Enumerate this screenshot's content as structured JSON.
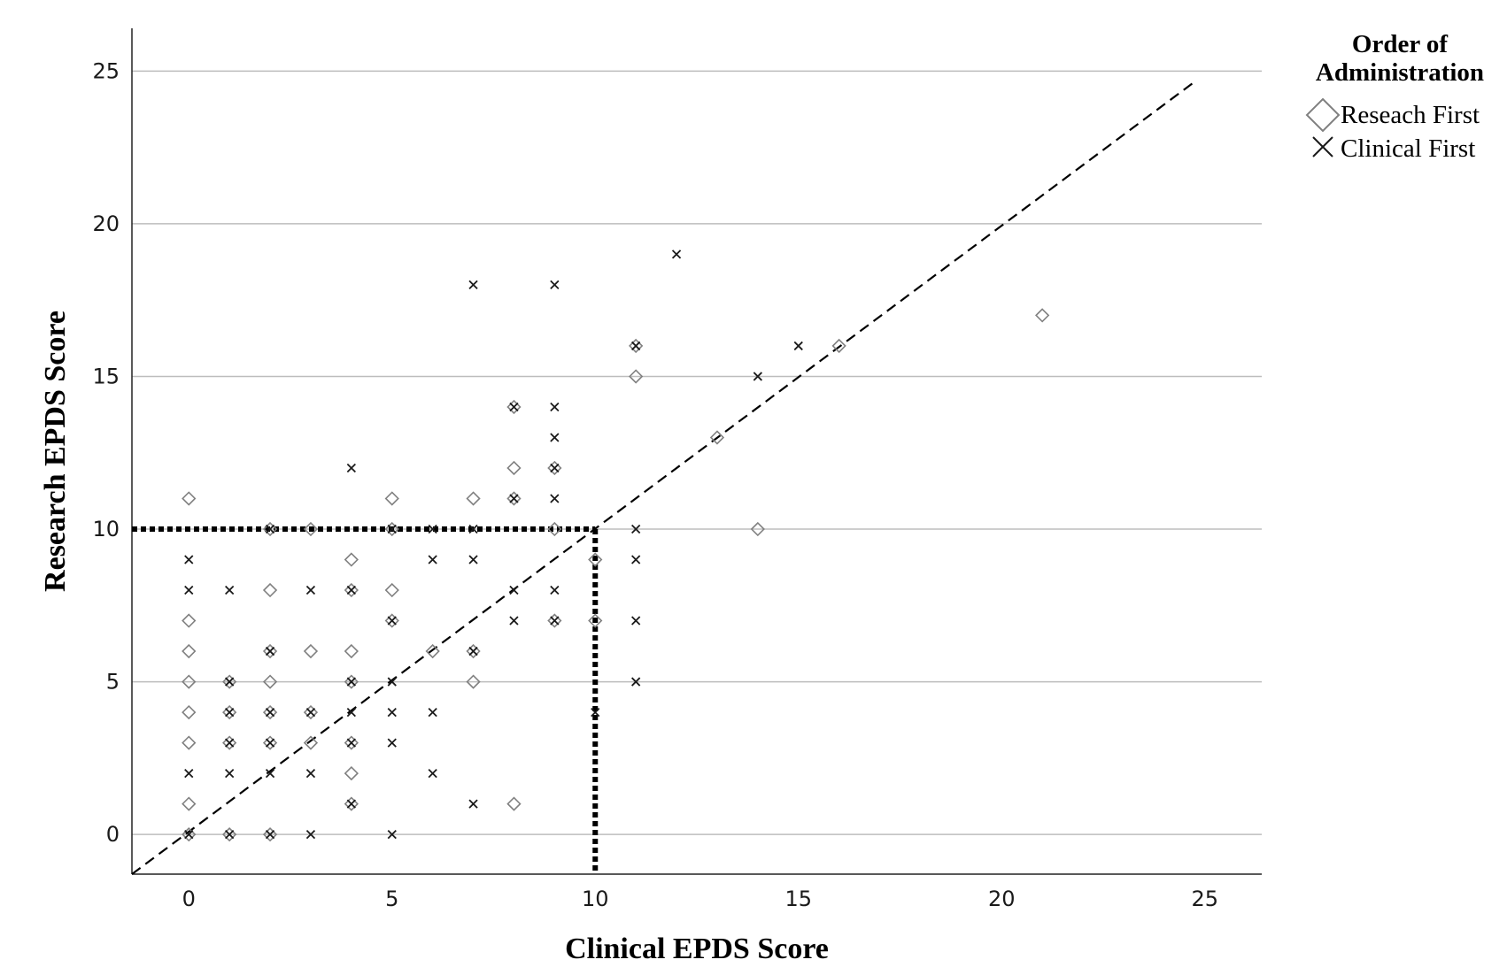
{
  "chart_data": {
    "type": "scatter",
    "xlabel": "Clinical EPDS Score",
    "ylabel": "Research EPDS Score",
    "xlim": [
      -1.4,
      26.4
    ],
    "ylim": [
      -1.3,
      26.4
    ],
    "xticks": [
      0,
      5,
      10,
      15,
      20,
      25
    ],
    "yticks": [
      0,
      5,
      10,
      15,
      20,
      25
    ],
    "grid": "horizontal",
    "legend": {
      "title_line1": "Order of",
      "title_line2": "Administration",
      "placement": "top-right outside"
    },
    "reference_lines": {
      "identity": {
        "style": "dashed",
        "from": [
          -1.4,
          -1.3
        ],
        "to": [
          24.8,
          24.7
        ]
      },
      "cutoff_horizontal": {
        "style": "dotted",
        "y": 10,
        "x_from": -1.4,
        "x_to": 10
      },
      "cutoff_vertical": {
        "style": "dotted",
        "x": 10,
        "y_from": 10,
        "y_to": -1.3
      }
    },
    "series": [
      {
        "name": "Reseach First",
        "marker": "diamond",
        "color": "#808080",
        "points": [
          [
            0,
            11
          ],
          [
            0,
            7
          ],
          [
            0,
            6
          ],
          [
            0,
            5
          ],
          [
            0,
            4
          ],
          [
            0,
            3
          ],
          [
            0,
            1
          ],
          [
            0,
            0
          ],
          [
            1,
            5
          ],
          [
            1,
            4
          ],
          [
            1,
            3
          ],
          [
            1,
            0
          ],
          [
            2,
            10
          ],
          [
            2,
            8
          ],
          [
            2,
            6
          ],
          [
            2,
            5
          ],
          [
            2,
            4
          ],
          [
            2,
            3
          ],
          [
            2,
            0
          ],
          [
            3,
            10
          ],
          [
            3,
            6
          ],
          [
            3,
            4
          ],
          [
            3,
            3
          ],
          [
            4,
            9
          ],
          [
            4,
            8
          ],
          [
            4,
            6
          ],
          [
            4,
            5
          ],
          [
            4,
            3
          ],
          [
            4,
            2
          ],
          [
            4,
            1
          ],
          [
            5,
            11
          ],
          [
            5,
            10
          ],
          [
            5,
            8
          ],
          [
            5,
            7
          ],
          [
            6,
            6
          ],
          [
            7,
            11
          ],
          [
            7,
            6
          ],
          [
            7,
            5
          ],
          [
            8,
            14
          ],
          [
            8,
            12
          ],
          [
            8,
            11
          ],
          [
            8,
            1
          ],
          [
            9,
            12
          ],
          [
            9,
            10
          ],
          [
            9,
            7
          ],
          [
            10,
            9
          ],
          [
            10,
            7
          ],
          [
            11,
            16
          ],
          [
            11,
            15
          ],
          [
            13,
            13
          ],
          [
            14,
            10
          ],
          [
            16,
            16
          ],
          [
            21,
            17
          ]
        ]
      },
      {
        "name": "Clinical First",
        "marker": "x",
        "color": "#1a1a1a",
        "points": [
          [
            0,
            9
          ],
          [
            0,
            8
          ],
          [
            0,
            2
          ],
          [
            0,
            0
          ],
          [
            1,
            8
          ],
          [
            1,
            5
          ],
          [
            1,
            4
          ],
          [
            1,
            3
          ],
          [
            1,
            2
          ],
          [
            1,
            0
          ],
          [
            2,
            10
          ],
          [
            2,
            6
          ],
          [
            2,
            4
          ],
          [
            2,
            3
          ],
          [
            2,
            2
          ],
          [
            2,
            0
          ],
          [
            3,
            8
          ],
          [
            3,
            4
          ],
          [
            3,
            2
          ],
          [
            3,
            0
          ],
          [
            4,
            12
          ],
          [
            4,
            8
          ],
          [
            4,
            5
          ],
          [
            4,
            4
          ],
          [
            4,
            3
          ],
          [
            4,
            1
          ],
          [
            5,
            10
          ],
          [
            5,
            7
          ],
          [
            5,
            5
          ],
          [
            5,
            4
          ],
          [
            5,
            3
          ],
          [
            5,
            0
          ],
          [
            6,
            10
          ],
          [
            6,
            9
          ],
          [
            6,
            4
          ],
          [
            6,
            2
          ],
          [
            7,
            18
          ],
          [
            7,
            10
          ],
          [
            7,
            9
          ],
          [
            7,
            6
          ],
          [
            7,
            1
          ],
          [
            8,
            14
          ],
          [
            8,
            11
          ],
          [
            8,
            8
          ],
          [
            8,
            7
          ],
          [
            9,
            18
          ],
          [
            9,
            14
          ],
          [
            9,
            13
          ],
          [
            9,
            12
          ],
          [
            9,
            11
          ],
          [
            9,
            8
          ],
          [
            9,
            7
          ],
          [
            10,
            4
          ],
          [
            11,
            16
          ],
          [
            11,
            10
          ],
          [
            11,
            9
          ],
          [
            11,
            7
          ],
          [
            11,
            5
          ],
          [
            12,
            19
          ],
          [
            14,
            15
          ],
          [
            15,
            16
          ]
        ]
      }
    ]
  }
}
